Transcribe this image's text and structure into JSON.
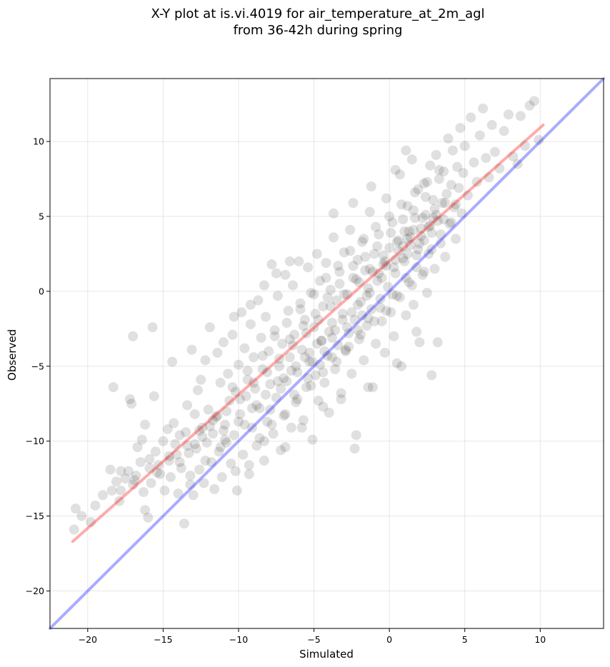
{
  "chart_data": {
    "type": "scatter",
    "title_line1": "X-Y plot at is.vi.4019 for air_temperature_at_2m_agl",
    "title_line2": "from 36-42h during spring",
    "xlabel": "Simulated",
    "ylabel": "Observed",
    "xlim": [
      -22.5,
      14.2
    ],
    "ylim": [
      -22.5,
      14.2
    ],
    "xticks": [
      -20,
      -15,
      -10,
      -5,
      0,
      5,
      10
    ],
    "yticks": [
      -20,
      -15,
      -10,
      -5,
      0,
      5,
      10
    ],
    "xtick_labels": [
      "−20",
      "−15",
      "−10",
      "−5",
      "0",
      "5",
      "10"
    ],
    "ytick_labels": [
      "−20",
      "−15",
      "−10",
      "−5",
      "0",
      "5",
      "10"
    ],
    "grid": true,
    "point_color": "#000000",
    "point_alpha": 0.12,
    "reference_line": {
      "color": "#0000ff",
      "from": [
        -22.5,
        -22.5
      ],
      "to": [
        14.2,
        14.2
      ]
    },
    "fit_line": {
      "color": "#ff0000",
      "from": [
        -21,
        -16.7
      ],
      "to": [
        10.2,
        11.1
      ]
    },
    "points": [
      [
        -20.9,
        -15.9
      ],
      [
        -20.8,
        -14.5
      ],
      [
        -20.4,
        -15.0
      ],
      [
        -19.8,
        -15.4
      ],
      [
        -19.5,
        -14.3
      ],
      [
        -19.0,
        -13.6
      ],
      [
        -18.5,
        -11.9
      ],
      [
        -18.4,
        -13.3
      ],
      [
        -18.3,
        -6.4
      ],
      [
        -18.1,
        -12.7
      ],
      [
        -17.9,
        -14.0
      ],
      [
        -17.8,
        -12.0
      ],
      [
        -17.5,
        -12.5
      ],
      [
        -17.3,
        -12.0
      ],
      [
        -17.2,
        -7.2
      ],
      [
        -17.1,
        -7.5
      ],
      [
        -17.0,
        -3.0
      ],
      [
        -17.0,
        -12.9
      ],
      [
        -16.8,
        -12.3
      ],
      [
        -16.7,
        -10.4
      ],
      [
        -16.5,
        -11.4
      ],
      [
        -16.4,
        -9.9
      ],
      [
        -16.3,
        -13.4
      ],
      [
        -16.2,
        -8.9
      ],
      [
        -16.2,
        -14.6
      ],
      [
        -16.0,
        -15.1
      ],
      [
        -15.9,
        -11.8
      ],
      [
        -15.8,
        -12.8
      ],
      [
        -15.7,
        -2.4
      ],
      [
        -15.6,
        -7.0
      ],
      [
        -15.5,
        -10.7
      ],
      [
        -15.3,
        -11.6
      ],
      [
        -15.2,
        -12.2
      ],
      [
        -15.0,
        -10.0
      ],
      [
        -14.9,
        -13.3
      ],
      [
        -14.7,
        -9.2
      ],
      [
        -14.6,
        -11.0
      ],
      [
        -14.5,
        -12.4
      ],
      [
        -14.4,
        -4.7
      ],
      [
        -14.3,
        -8.8
      ],
      [
        -14.2,
        -10.2
      ],
      [
        -14.0,
        -13.5
      ],
      [
        -13.9,
        -9.6
      ],
      [
        -13.8,
        -11.8
      ],
      [
        -13.6,
        -15.5
      ],
      [
        -13.5,
        -9.4
      ],
      [
        -13.4,
        -7.6
      ],
      [
        -13.3,
        -10.8
      ],
      [
        -13.2,
        -12.3
      ],
      [
        -13.1,
        -3.9
      ],
      [
        -13.0,
        -13.6
      ],
      [
        -12.9,
        -8.2
      ],
      [
        -12.8,
        -10.5
      ],
      [
        -12.7,
        -6.6
      ],
      [
        -12.6,
        -11.9
      ],
      [
        -12.5,
        -5.9
      ],
      [
        -12.4,
        -9.1
      ],
      [
        -12.3,
        -12.8
      ],
      [
        -12.2,
        -4.6
      ],
      [
        -12.1,
        -10.1
      ],
      [
        -12.0,
        -7.9
      ],
      [
        -11.9,
        -2.4
      ],
      [
        -11.8,
        -11.4
      ],
      [
        -11.7,
        -9.5
      ],
      [
        -11.6,
        -13.2
      ],
      [
        -11.5,
        -8.4
      ],
      [
        -11.4,
        -4.1
      ],
      [
        -11.3,
        -10.7
      ],
      [
        -11.2,
        -6.1
      ],
      [
        -11.1,
        -12.4
      ],
      [
        -11.0,
        -3.4
      ],
      [
        -10.9,
        -8.9
      ],
      [
        -10.8,
        -10.1
      ],
      [
        -10.7,
        -5.5
      ],
      [
        -10.6,
        -7.3
      ],
      [
        -10.5,
        -11.5
      ],
      [
        -10.4,
        -2.9
      ],
      [
        -10.3,
        -9.6
      ],
      [
        -10.2,
        -6.7
      ],
      [
        -10.1,
        -13.3
      ],
      [
        -10.0,
        -4.9
      ],
      [
        -9.9,
        -8.2
      ],
      [
        -9.8,
        -1.4
      ],
      [
        -9.7,
        -10.9
      ],
      [
        -9.6,
        -3.8
      ],
      [
        -9.5,
        -7.0
      ],
      [
        -9.4,
        -5.9
      ],
      [
        -9.3,
        -12.2
      ],
      [
        -9.2,
        -2.2
      ],
      [
        -9.1,
        -9.1
      ],
      [
        -9.0,
        -4.4
      ],
      [
        -8.9,
        -6.5
      ],
      [
        -8.8,
        -10.3
      ],
      [
        -8.7,
        -0.6
      ],
      [
        -8.6,
        -7.8
      ],
      [
        -8.5,
        -3.1
      ],
      [
        -8.4,
        -5.2
      ],
      [
        -8.3,
        -11.3
      ],
      [
        -8.2,
        -1.7
      ],
      [
        -8.1,
        -8.7
      ],
      [
        -8.0,
        -4.0
      ],
      [
        -7.9,
        -6.2
      ],
      [
        -7.8,
        1.8
      ],
      [
        -7.7,
        -9.5
      ],
      [
        -7.6,
        -2.6
      ],
      [
        -7.5,
        -7.1
      ],
      [
        -7.4,
        -0.3
      ],
      [
        -7.3,
        -5.0
      ],
      [
        -7.2,
        -10.6
      ],
      [
        -7.1,
        -3.5
      ],
      [
        -7.0,
        -8.3
      ],
      [
        -6.9,
        1.1
      ],
      [
        -6.8,
        -6.0
      ],
      [
        -6.7,
        -1.3
      ],
      [
        -6.6,
        -4.4
      ],
      [
        -6.5,
        -9.1
      ],
      [
        -6.4,
        0.4
      ],
      [
        -6.3,
        -2.9
      ],
      [
        -6.2,
        -7.4
      ],
      [
        -6.1,
        -5.4
      ],
      [
        -6.0,
        2.0
      ],
      [
        -5.9,
        -0.8
      ],
      [
        -5.8,
        -3.9
      ],
      [
        -5.7,
        -8.6
      ],
      [
        -5.6,
        -1.9
      ],
      [
        -5.5,
        -6.4
      ],
      [
        -5.4,
        1.6
      ],
      [
        -5.3,
        -4.7
      ],
      [
        -5.2,
        -0.1
      ],
      [
        -5.1,
        -9.9
      ],
      [
        -5.0,
        -2.4
      ],
      [
        -4.9,
        -5.6
      ],
      [
        -4.8,
        2.5
      ],
      [
        -4.7,
        -7.3
      ],
      [
        -4.6,
        0.7
      ],
      [
        -4.5,
        -3.3
      ],
      [
        -4.4,
        -1.0
      ],
      [
        -4.3,
        -6.1
      ],
      [
        -4.2,
        1.9
      ],
      [
        -4.1,
        -4.3
      ],
      [
        -4.0,
        -8.1
      ],
      [
        -3.9,
        0.1
      ],
      [
        -3.8,
        -2.1
      ],
      [
        -3.7,
        3.6
      ],
      [
        -3.6,
        -5.2
      ],
      [
        -3.5,
        -0.6
      ],
      [
        -3.4,
        -3.6
      ],
      [
        -3.3,
        1.3
      ],
      [
        -3.2,
        -6.8
      ],
      [
        -3.1,
        -1.5
      ],
      [
        -3.0,
        2.6
      ],
      [
        -2.9,
        -4.0
      ],
      [
        -2.8,
        -0.2
      ],
      [
        -2.7,
        -2.8
      ],
      [
        -2.6,
        4.1
      ],
      [
        -2.5,
        -5.5
      ],
      [
        -2.4,
        0.9
      ],
      [
        -2.3,
        -1.9
      ],
      [
        -2.2,
        -9.6
      ],
      [
        -2.1,
        2.1
      ],
      [
        -2.0,
        -3.2
      ],
      [
        -1.9,
        -0.7
      ],
      [
        -1.8,
        3.3
      ],
      [
        -1.7,
        -4.6
      ],
      [
        -1.6,
        1.4
      ],
      [
        -1.5,
        -2.3
      ],
      [
        -1.4,
        0.2
      ],
      [
        -1.3,
        5.3
      ],
      [
        -1.2,
        -1.2
      ],
      [
        -1.1,
        -6.4
      ],
      [
        -1.0,
        2.5
      ],
      [
        -0.9,
        -3.5
      ],
      [
        -0.8,
        0.7
      ],
      [
        -0.7,
        3.8
      ],
      [
        -0.6,
        -0.5
      ],
      [
        -0.5,
        -2.0
      ],
      [
        -0.4,
        1.8
      ],
      [
        -0.3,
        -4.1
      ],
      [
        -0.2,
        6.2
      ],
      [
        -0.1,
        0.3
      ],
      [
        0.0,
        2.9
      ],
      [
        0.1,
        -1.4
      ],
      [
        0.2,
        4.6
      ],
      [
        0.3,
        -3.0
      ],
      [
        0.4,
        1.2
      ],
      [
        0.5,
        -0.3
      ],
      [
        0.6,
        3.4
      ],
      [
        0.7,
        7.8
      ],
      [
        0.8,
        -5.0
      ],
      [
        0.9,
        2.2
      ],
      [
        1.0,
        4.0
      ],
      [
        1.1,
        -1.6
      ],
      [
        1.2,
        5.7
      ],
      [
        1.3,
        0.6
      ],
      [
        1.4,
        3.1
      ],
      [
        1.5,
        8.8
      ],
      [
        1.6,
        -0.9
      ],
      [
        1.7,
        4.9
      ],
      [
        1.8,
        2.4
      ],
      [
        1.9,
        6.8
      ],
      [
        2.0,
        -3.4
      ],
      [
        2.1,
        3.7
      ],
      [
        2.2,
        1.1
      ],
      [
        2.3,
        7.2
      ],
      [
        2.4,
        5.1
      ],
      [
        2.5,
        -0.1
      ],
      [
        2.6,
        4.3
      ],
      [
        2.7,
        8.4
      ],
      [
        2.8,
        2.8
      ],
      [
        2.9,
        6.1
      ],
      [
        3.0,
        1.5
      ],
      [
        3.1,
        9.1
      ],
      [
        3.2,
        4.7
      ],
      [
        3.3,
        7.5
      ],
      [
        3.4,
        3.2
      ],
      [
        3.5,
        5.9
      ],
      [
        3.6,
        8.0
      ],
      [
        3.7,
        2.3
      ],
      [
        3.8,
        6.5
      ],
      [
        3.9,
        10.2
      ],
      [
        4.0,
        4.5
      ],
      [
        4.1,
        7.1
      ],
      [
        4.2,
        9.4
      ],
      [
        4.3,
        5.6
      ],
      [
        4.4,
        3.5
      ],
      [
        4.5,
        8.3
      ],
      [
        4.6,
        6.9
      ],
      [
        4.7,
        10.9
      ],
      [
        4.8,
        5.2
      ],
      [
        4.9,
        7.9
      ],
      [
        5.0,
        9.7
      ],
      [
        5.2,
        6.4
      ],
      [
        5.4,
        11.6
      ],
      [
        5.6,
        8.6
      ],
      [
        5.8,
        7.3
      ],
      [
        6.0,
        10.4
      ],
      [
        6.2,
        12.2
      ],
      [
        6.4,
        8.9
      ],
      [
        6.6,
        7.6
      ],
      [
        6.8,
        11.1
      ],
      [
        7.0,
        9.3
      ],
      [
        7.3,
        8.2
      ],
      [
        7.6,
        10.7
      ],
      [
        7.9,
        11.8
      ],
      [
        8.2,
        9.0
      ],
      [
        8.5,
        8.5
      ],
      [
        8.7,
        11.7
      ],
      [
        9.0,
        9.7
      ],
      [
        9.3,
        12.4
      ],
      [
        9.6,
        12.7
      ],
      [
        9.9,
        10.1
      ],
      [
        -12.4,
        -9.7
      ],
      [
        -11.7,
        -8.6
      ],
      [
        -10.9,
        -9.9
      ],
      [
        -9.6,
        -8.9
      ],
      [
        -8.8,
        -7.6
      ],
      [
        -7.9,
        -7.9
      ],
      [
        -7.2,
        -6.5
      ],
      [
        -6.3,
        -6.9
      ],
      [
        -5.4,
        -5.8
      ],
      [
        -4.6,
        -4.9
      ],
      [
        -3.8,
        -4.4
      ],
      [
        -2.9,
        -3.9
      ],
      [
        -2.1,
        -2.6
      ],
      [
        -1.4,
        -1.8
      ],
      [
        -0.6,
        -1.1
      ],
      [
        0.2,
        -0.2
      ],
      [
        1.1,
        0.9
      ],
      [
        1.8,
        1.6
      ],
      [
        2.6,
        2.5
      ],
      [
        3.4,
        3.8
      ],
      [
        4.1,
        4.6
      ],
      [
        -6.6,
        -3.2
      ],
      [
        -5.7,
        -2.3
      ],
      [
        -4.9,
        -1.5
      ],
      [
        -4.1,
        -0.4
      ],
      [
        -3.3,
        0.5
      ],
      [
        -2.4,
        1.7
      ],
      [
        -1.6,
        2.3
      ],
      [
        -0.8,
        3.0
      ],
      [
        0.1,
        3.9
      ],
      [
        0.9,
        4.8
      ],
      [
        1.6,
        5.4
      ],
      [
        2.4,
        6.3
      ],
      [
        -13.9,
        -11.4
      ],
      [
        -12.9,
        -10.2
      ],
      [
        -11.9,
        -9.0
      ],
      [
        -10.8,
        -8.0
      ],
      [
        -9.9,
        -7.2
      ],
      [
        -9.0,
        -6.1
      ],
      [
        -8.1,
        -5.4
      ],
      [
        -7.3,
        -4.5
      ],
      [
        -6.4,
        -3.6
      ],
      [
        -5.5,
        -2.8
      ],
      [
        -4.7,
        -1.9
      ],
      [
        -3.9,
        -1.0
      ],
      [
        -3.0,
        -0.2
      ],
      [
        -2.2,
        0.8
      ],
      [
        -1.3,
        1.5
      ],
      [
        -0.4,
        2.4
      ],
      [
        0.5,
        3.3
      ],
      [
        1.3,
        4.0
      ],
      [
        2.2,
        4.9
      ],
      [
        3.0,
        5.5
      ],
      [
        -15.4,
        -12.1
      ],
      [
        -14.6,
        -11.3
      ],
      [
        -13.4,
        -10.3
      ],
      [
        -12.6,
        -9.3
      ],
      [
        -11.4,
        -8.3
      ],
      [
        -10.4,
        -6.4
      ],
      [
        -9.4,
        -5.3
      ],
      [
        -8.4,
        -4.3
      ],
      [
        -7.6,
        -3.0
      ],
      [
        -6.8,
        -2.1
      ],
      [
        -5.9,
        -1.2
      ],
      [
        -5.0,
        -0.2
      ],
      [
        -4.2,
        0.9
      ],
      [
        -3.4,
        1.7
      ],
      [
        -2.6,
        2.7
      ],
      [
        -1.7,
        3.5
      ],
      [
        -0.9,
        4.3
      ],
      [
        0.0,
        5.0
      ],
      [
        0.8,
        5.8
      ],
      [
        1.7,
        6.6
      ],
      [
        2.5,
        7.3
      ],
      [
        3.3,
        8.1
      ],
      [
        -8.6,
        -9.8
      ],
      [
        -7.8,
        -8.9
      ],
      [
        -6.9,
        -8.2
      ],
      [
        -6.1,
        -7.2
      ],
      [
        -5.2,
        -6.3
      ],
      [
        -4.4,
        -5.4
      ],
      [
        -3.5,
        -4.7
      ],
      [
        -2.7,
        -3.7
      ],
      [
        -1.9,
        -2.9
      ],
      [
        -1.0,
        -2.0
      ],
      [
        -0.2,
        -1.3
      ],
      [
        0.7,
        -0.4
      ],
      [
        1.5,
        0.4
      ],
      [
        2.3,
        1.3
      ],
      [
        -7.5,
        1.2
      ],
      [
        -6.6,
        2.0
      ],
      [
        -8.3,
        0.4
      ],
      [
        -9.2,
        -0.9
      ],
      [
        -10.3,
        -1.7
      ],
      [
        -3.7,
        5.2
      ],
      [
        -2.4,
        5.9
      ],
      [
        -1.2,
        7.0
      ],
      [
        0.4,
        8.1
      ],
      [
        1.1,
        9.4
      ],
      [
        -17.8,
        -13.3
      ],
      [
        -16.9,
        -12.6
      ],
      [
        -15.9,
        -11.2
      ],
      [
        -14.1,
        -10.9
      ],
      [
        -13.2,
        -12.9
      ],
      [
        -12.2,
        -11.3
      ],
      [
        -11.2,
        -10.4
      ],
      [
        -10.2,
        -12.0
      ],
      [
        -9.3,
        -11.6
      ],
      [
        -8.3,
        -10.0
      ],
      [
        -6.9,
        -10.4
      ],
      [
        -5.8,
        -9.1
      ],
      [
        -4.4,
        -7.7
      ],
      [
        -3.2,
        -7.2
      ],
      [
        -2.3,
        -10.5
      ],
      [
        -1.4,
        -6.4
      ],
      [
        0.5,
        -4.8
      ],
      [
        1.8,
        -2.7
      ],
      [
        2.8,
        -5.6
      ],
      [
        3.2,
        -3.4
      ],
      [
        -1.5,
        -0.3
      ],
      [
        -2.5,
        -1.4
      ],
      [
        -3.6,
        -2.6
      ],
      [
        -4.5,
        -3.3
      ],
      [
        -5.3,
        -4.1
      ],
      [
        -6.2,
        -5.0
      ],
      [
        -7.0,
        -5.8
      ],
      [
        -2.0,
        0.6
      ],
      [
        -1.1,
        1.3
      ],
      [
        -0.3,
        2.0
      ],
      [
        0.6,
        2.7
      ],
      [
        1.4,
        3.6
      ],
      [
        2.1,
        4.2
      ],
      [
        2.9,
        4.9
      ],
      [
        3.7,
        5.9
      ],
      [
        -3.1,
        -1.9
      ],
      [
        -2.1,
        -0.9
      ],
      [
        -1.3,
        -0.1
      ],
      [
        -0.5,
        0.9
      ],
      [
        0.3,
        1.6
      ],
      [
        1.2,
        2.5
      ],
      [
        2.0,
        3.2
      ],
      [
        2.8,
        3.9
      ],
      [
        3.6,
        4.8
      ],
      [
        4.4,
        5.8
      ],
      [
        -4.0,
        -2.7
      ],
      [
        -4.8,
        -3.5
      ],
      [
        -5.6,
        -4.4
      ],
      [
        -6.5,
        -5.3
      ],
      [
        -7.4,
        -6.0
      ],
      [
        -8.2,
        -6.9
      ],
      [
        -9.1,
        -7.8
      ],
      [
        -10.0,
        -8.7
      ],
      [
        -11.0,
        -9.3
      ],
      [
        0.9,
        3.0
      ],
      [
        1.2,
        3.5
      ],
      [
        1.6,
        4.1
      ],
      [
        0.4,
        2.1
      ],
      [
        -0.2,
        1.7
      ],
      [
        -0.7,
        1.2
      ],
      [
        2.3,
        3.4
      ],
      [
        2.7,
        4.4
      ],
      [
        3.1,
        5.1
      ],
      [
        1.9,
        2.8
      ],
      [
        1.0,
        2.0
      ],
      [
        -1.8,
        -1.6
      ],
      [
        -2.8,
        -2.4
      ],
      [
        -3.8,
        -3.1
      ],
      [
        -4.3,
        -4.0
      ],
      [
        -5.1,
        -4.7
      ]
    ]
  }
}
